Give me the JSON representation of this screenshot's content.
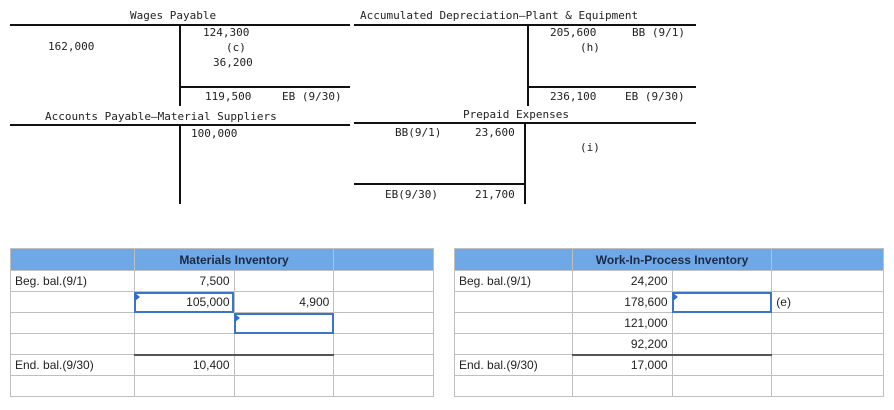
{
  "wages_payable": {
    "title": "Wages Payable",
    "debit": [
      "162,000"
    ],
    "credit": [
      "124,300",
      "(c)",
      "36,200"
    ],
    "end_amount": "119,500",
    "end_label": "EB (9/30)"
  },
  "accum_depr": {
    "title": "Accumulated Depreciation—Plant & Equipment",
    "credit_amounts": [
      "205,600",
      "(h)"
    ],
    "credit_labels": [
      "BB (9/1)"
    ],
    "end_amount": "236,100",
    "end_label": "EB (9/30)"
  },
  "accounts_payable": {
    "title": "Accounts Payable—Material Suppliers",
    "credit": [
      "100,000"
    ]
  },
  "prepaid": {
    "title": "Prepaid Expenses",
    "bb_label": "BB(9/1)",
    "bb_amount": "23,600",
    "credit": [
      "(i)"
    ],
    "eb_label": "EB(9/30)",
    "eb_amount": "21,700"
  },
  "materials_inventory": {
    "title": "Materials Inventory",
    "beg_label": "Beg. bal.(9/1)",
    "beg_amount": "7,500",
    "debit_2": "105,000",
    "credit_2": "4,900",
    "end_label": "End. bal.(9/30)",
    "end_amount": "10,400"
  },
  "wip_inventory": {
    "title": "Work-In-Process Inventory",
    "beg_label": "Beg. bal.(9/1)",
    "debits": [
      "24,200",
      "178,600",
      "121,000",
      "92,200"
    ],
    "credit_note": "(e)",
    "end_label": "End. bal.(9/30)",
    "end_amount": "17,000"
  }
}
